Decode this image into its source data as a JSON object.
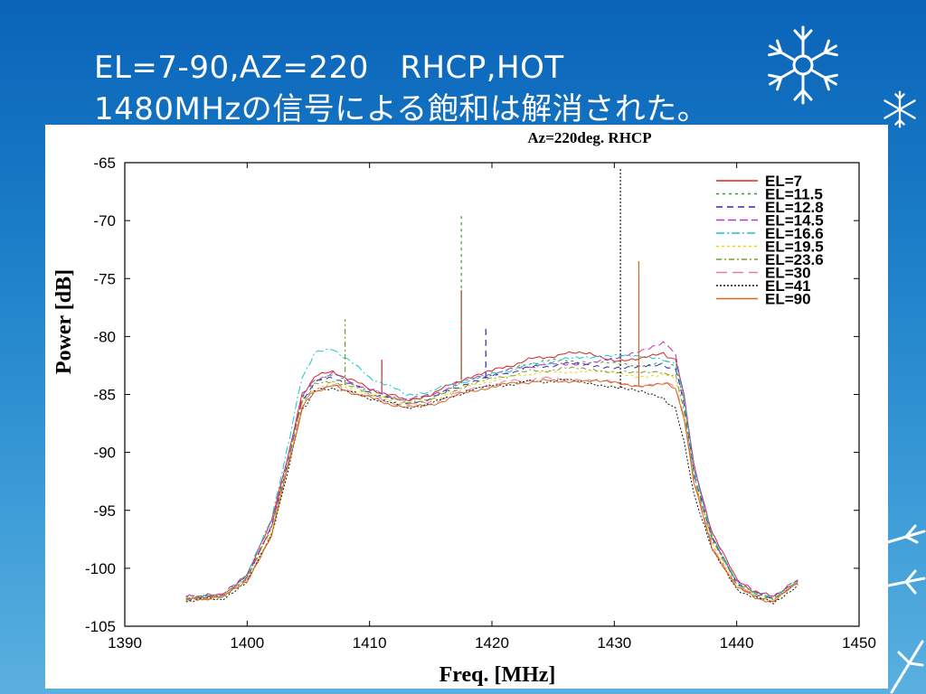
{
  "slide": {
    "title_line1": "EL=7-90,AZ=220　RHCP,HOT",
    "title_line2": "1480MHzの信号による飽和は解消された。"
  },
  "chart_data": {
    "type": "line",
    "title": "Az=220deg.  RHCP",
    "xlabel": "Freq. [MHz]",
    "ylabel": "Power [dB]",
    "xlim": [
      1390,
      1450
    ],
    "ylim": [
      -105,
      -65
    ],
    "xticks": [
      "1390",
      "1400",
      "1410",
      "1420",
      "1430",
      "1440",
      "1450"
    ],
    "yticks": [
      "-65",
      "-70",
      "-75",
      "-80",
      "-85",
      "-90",
      "-95",
      "-100",
      "-105"
    ],
    "legend_position": "top-right",
    "grid": false,
    "x": [
      1395,
      1398,
      1400,
      1402,
      1403.5,
      1404.5,
      1405.5,
      1407,
      1410,
      1413,
      1415,
      1418,
      1420,
      1423,
      1426,
      1428,
      1430,
      1432,
      1434,
      1435,
      1435.7,
      1436.5,
      1438,
      1440,
      1441.5,
      1443,
      1445
    ],
    "series": [
      {
        "name": "EL=7",
        "color": "#d62728",
        "dash": "",
        "values": [
          -102.5,
          -102.3,
          -100.5,
          -96,
          -89.5,
          -85,
          -83.5,
          -83,
          -84.5,
          -85.5,
          -85,
          -83.5,
          -83,
          -82,
          -81.5,
          -81.5,
          -82,
          -82,
          -81.5,
          -82,
          -85,
          -91,
          -97,
          -101,
          -102,
          -102.5,
          -101
        ],
        "spikes": [
          [
            1411,
            -82
          ],
          [
            1417.5,
            -76
          ]
        ]
      },
      {
        "name": "EL=11.5",
        "color": "#2ca02c",
        "dash": "3,4",
        "values": [
          -102.5,
          -102.4,
          -100.7,
          -96.3,
          -89.8,
          -85.3,
          -83.8,
          -83.3,
          -84.7,
          -85.6,
          -85.2,
          -83.8,
          -83.3,
          -82.3,
          -82,
          -82.2,
          -82.4,
          -82.5,
          -82.2,
          -82.5,
          -85.5,
          -91.5,
          -97.3,
          -101.2,
          -102.1,
          -102.6,
          -101
        ],
        "spikes": [
          [
            1417.5,
            -69.5
          ]
        ]
      },
      {
        "name": "EL=12.8",
        "color": "#2b2bb0",
        "dash": "7,5",
        "values": [
          -102.6,
          -102.4,
          -100.8,
          -96.5,
          -90,
          -85.5,
          -84,
          -83.5,
          -84.8,
          -85.7,
          -85.3,
          -84,
          -83.5,
          -82.7,
          -82.4,
          -82.5,
          -82.6,
          -82.7,
          -82.5,
          -82.8,
          -85.8,
          -91.7,
          -97.5,
          -101.3,
          -102.2,
          -102.7,
          -101.1
        ],
        "spikes": [
          [
            1419.5,
            -79
          ]
        ]
      },
      {
        "name": "EL=14.5",
        "color": "#c030c0",
        "dash": "9,4",
        "values": [
          -102.5,
          -102.3,
          -100.6,
          -96.2,
          -89.7,
          -85.2,
          -83.7,
          -83.2,
          -84.6,
          -85.5,
          -85.1,
          -83.7,
          -83.2,
          -82.6,
          -82.3,
          -82.3,
          -82,
          -81.2,
          -80.5,
          -81.5,
          -85.2,
          -91.2,
          -97.2,
          -101.1,
          -102,
          -102.5,
          -101
        ],
        "spikes": []
      },
      {
        "name": "EL=16.6",
        "color": "#17c6c6",
        "dash": "9,3,2,3",
        "values": [
          -102.6,
          -102.4,
          -100.5,
          -95.8,
          -88.5,
          -83.5,
          -81.5,
          -81,
          -83.5,
          -85,
          -84.7,
          -83.8,
          -83.3,
          -82.5,
          -82,
          -81.8,
          -81.5,
          -81.8,
          -82,
          -82.3,
          -85.3,
          -91.3,
          -97.3,
          -101.2,
          -102.1,
          -102.6,
          -101
        ],
        "spikes": []
      },
      {
        "name": "EL=19.5",
        "color": "#f2d20a",
        "dash": "3,3",
        "values": [
          -102.7,
          -102.5,
          -101,
          -96.8,
          -90.3,
          -85.8,
          -84.5,
          -84,
          -85,
          -85.8,
          -85.5,
          -84.3,
          -83.8,
          -83.2,
          -83,
          -83,
          -83.2,
          -83.4,
          -83.3,
          -83.6,
          -86.5,
          -92.2,
          -97.8,
          -101.5,
          -102.3,
          -102.8,
          -101.2
        ],
        "spikes": []
      },
      {
        "name": "EL=23.6",
        "color": "#7a9a2a",
        "dash": "6,3,2,3",
        "values": [
          -102.6,
          -102.4,
          -100.9,
          -96.6,
          -90.1,
          -85.6,
          -84.2,
          -83.8,
          -84.9,
          -85.7,
          -85.4,
          -84.2,
          -83.7,
          -83,
          -82.8,
          -82.8,
          -83,
          -83.2,
          -83.1,
          -83.4,
          -86.3,
          -92,
          -97.7,
          -101.4,
          -102.3,
          -102.7,
          -101.1
        ],
        "spikes": [
          [
            1408,
            -78.5
          ]
        ]
      },
      {
        "name": "EL=30",
        "color": "#e87aa0",
        "dash": "12,6",
        "values": [
          -102.7,
          -102.5,
          -101,
          -97,
          -90.5,
          -86,
          -84.5,
          -84.2,
          -85.2,
          -86,
          -85.7,
          -84.6,
          -84.1,
          -83.7,
          -83.6,
          -83.8,
          -84,
          -84.2,
          -84,
          -84.3,
          -87,
          -92.5,
          -98,
          -101.6,
          -102.4,
          -102.9,
          -101.3
        ],
        "spikes": []
      },
      {
        "name": "EL=41",
        "color": "#111111",
        "dash": "2,2",
        "values": [
          -102.8,
          -102.6,
          -101.2,
          -97.2,
          -90.8,
          -86.3,
          -84.8,
          -84.4,
          -85.3,
          -86.1,
          -85.8,
          -84.7,
          -84.3,
          -83.9,
          -83.8,
          -84,
          -84.3,
          -84.8,
          -85.3,
          -86.3,
          -89,
          -93.5,
          -98.5,
          -101.8,
          -102.5,
          -103,
          -101.4
        ],
        "spikes": [
          [
            1430.5,
            -65.5
          ]
        ]
      },
      {
        "name": "EL=90",
        "color": "#d2691e",
        "dash": "",
        "values": [
          -102.7,
          -102.5,
          -101.1,
          -97.1,
          -90.6,
          -86.2,
          -84.7,
          -84.3,
          -85.3,
          -86.2,
          -85.9,
          -84.8,
          -84.3,
          -83.9,
          -83.8,
          -83.9,
          -84,
          -84.2,
          -84.1,
          -84.4,
          -87.2,
          -92.7,
          -98.2,
          -101.7,
          -102.5,
          -102.9,
          -101.3
        ],
        "spikes": [
          [
            1432,
            -73.5
          ]
        ]
      }
    ]
  }
}
